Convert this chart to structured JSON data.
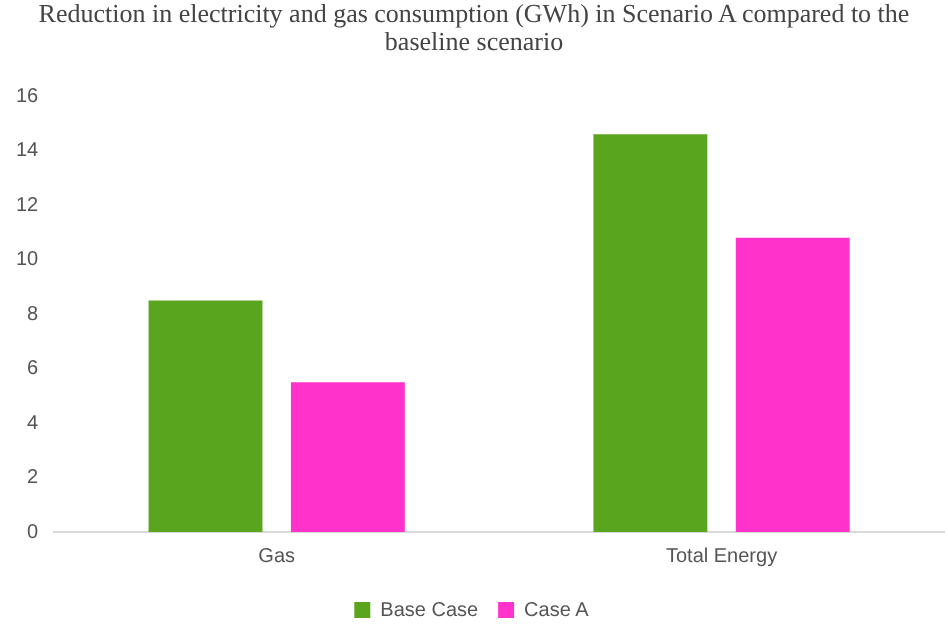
{
  "chart_data": {
    "type": "bar",
    "title": "Reduction in electricity and gas consumption (GWh) in Scenario A compared to the baseline scenario",
    "categories": [
      "Gas",
      "Total Energy"
    ],
    "series": [
      {
        "name": "Base Case",
        "color": "#5aa51e",
        "values": [
          8.5,
          14.6
        ]
      },
      {
        "name": "Case A",
        "color": "#ff33cc",
        "values": [
          5.5,
          10.8
        ]
      }
    ],
    "ylim": [
      0,
      16
    ],
    "yticks": [
      0,
      2,
      4,
      6,
      8,
      10,
      12,
      14,
      16
    ],
    "grid": false,
    "legend": "bottom"
  }
}
